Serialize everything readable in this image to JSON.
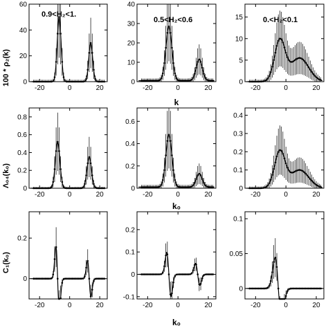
{
  "chart_data": [
    {
      "type": "scatter",
      "panel": "row1-col1",
      "annotation": "0.9<H₂<1.",
      "ylabel": "100 * ρ₂(k)",
      "xlabel": "",
      "xlim": [
        -27,
        25
      ],
      "ylim": [
        0,
        60
      ],
      "yticks": [
        0,
        20,
        40,
        60
      ],
      "xticks": [
        -20,
        0,
        20
      ],
      "grid": false,
      "shape": "peaks",
      "peaks": [
        [
          -7,
          50,
          1.3
        ],
        [
          14,
          30,
          1.3
        ]
      ],
      "base": 0,
      "tail": 0,
      "has_errorbars": true
    },
    {
      "type": "scatter",
      "panel": "row1-col2",
      "annotation": "0.5<H₂<0.6",
      "ylabel": "",
      "xlabel": "k",
      "xlim": [
        -27,
        25
      ],
      "ylim": [
        0,
        40
      ],
      "yticks": [
        0,
        10,
        20,
        30,
        40
      ],
      "xticks": [
        -20,
        0,
        20
      ],
      "grid": false,
      "shape": "peaks",
      "peaks": [
        [
          -6,
          28,
          2
        ],
        [
          14,
          11,
          2
        ]
      ],
      "base": 0.5,
      "tail": 0,
      "has_errorbars": true
    },
    {
      "type": "scatter",
      "panel": "row1-col3",
      "annotation": "0.<H₂<0.1",
      "ylabel": "",
      "xlabel": "",
      "xlim": [
        -27,
        25
      ],
      "ylim": [
        0,
        18
      ],
      "yticks": [
        0,
        5,
        10,
        15
      ],
      "xticks": [
        -20,
        0,
        20
      ],
      "grid": false,
      "shape": "broad",
      "peaks": [
        [
          -4,
          9.5,
          3.5
        ]
      ],
      "base": 0,
      "tail": 5.5,
      "has_errorbars": true
    },
    {
      "type": "scatter",
      "panel": "row2-col1",
      "annotation": "",
      "ylabel": "Λ₀₄(k₀)",
      "xlabel": "",
      "xlim": [
        -27,
        25
      ],
      "ylim": [
        0,
        0.9
      ],
      "yticks": [
        0,
        0.2,
        0.4,
        0.6,
        0.8
      ],
      "xticks": [
        -20,
        0,
        20
      ],
      "grid": false,
      "shape": "peaks",
      "peaks": [
        [
          -8,
          0.52,
          1.5
        ],
        [
          13,
          0.35,
          1.5
        ]
      ],
      "base": 0,
      "tail": 0,
      "has_errorbars": true
    },
    {
      "type": "scatter",
      "panel": "row2-col2",
      "annotation": "",
      "ylabel": "",
      "xlabel": "k₀",
      "xlim": [
        -27,
        25
      ],
      "ylim": [
        0,
        0.72
      ],
      "yticks": [
        0,
        0.2,
        0.4,
        0.6
      ],
      "xticks": [
        -20,
        0,
        20
      ],
      "grid": false,
      "shape": "peaks",
      "peaks": [
        [
          -6,
          0.47,
          2
        ],
        [
          14,
          0.12,
          2
        ]
      ],
      "base": 0.01,
      "tail": 0,
      "has_errorbars": true
    },
    {
      "type": "scatter",
      "panel": "row2-col3",
      "annotation": "",
      "ylabel": "",
      "xlabel": "",
      "xlim": [
        -27,
        25
      ],
      "ylim": [
        0,
        0.44
      ],
      "yticks": [
        0,
        0.1,
        0.2,
        0.3,
        0.4
      ],
      "xticks": [
        -20,
        0,
        20
      ],
      "grid": false,
      "shape": "broad",
      "peaks": [
        [
          -4,
          0.2,
          3.5
        ]
      ],
      "base": 0,
      "tail": 0.1,
      "has_errorbars": true
    },
    {
      "type": "scatter",
      "panel": "row3-col1",
      "annotation": "",
      "ylabel": "C₁(k₀)",
      "xlabel": "",
      "xlim": [
        -27,
        25
      ],
      "ylim": [
        -0.1,
        0.33
      ],
      "yticks": [
        0,
        0.2
      ],
      "xticks": [
        -20,
        0,
        20
      ],
      "grid": false,
      "shape": "deriv",
      "peaks": [
        [
          -8,
          0.16,
          1.6
        ],
        [
          13,
          0.09,
          1.6
        ]
      ],
      "base": 0,
      "tail": 0,
      "has_errorbars": true
    },
    {
      "type": "scatter",
      "panel": "row3-col2",
      "annotation": "",
      "ylabel": "",
      "xlabel": "k₀",
      "xlim": [
        -27,
        25
      ],
      "ylim": [
        -0.11,
        0.28
      ],
      "yticks": [
        -0.1,
        0,
        0.1,
        0.2
      ],
      "xticks": [
        -20,
        0,
        20
      ],
      "grid": false,
      "shape": "deriv",
      "peaks": [
        [
          -6,
          0.1,
          2
        ],
        [
          13,
          0.05,
          2
        ]
      ],
      "base": 0,
      "tail": 0,
      "has_errorbars": true
    },
    {
      "type": "scatter",
      "panel": "row3-col3",
      "annotation": "",
      "ylabel": "",
      "xlabel": "",
      "xlim": [
        -27,
        25
      ],
      "ylim": [
        -0.015,
        0.11
      ],
      "yticks": [
        0,
        0.05,
        0.1
      ],
      "xticks": [
        -20,
        0,
        20
      ],
      "grid": false,
      "shape": "deriv",
      "peaks": [
        [
          -5,
          0.045,
          3
        ]
      ],
      "base": 0,
      "tail": 0,
      "has_errorbars": true
    }
  ],
  "colors": {
    "ink": "#000000",
    "background": "#ffffff"
  }
}
